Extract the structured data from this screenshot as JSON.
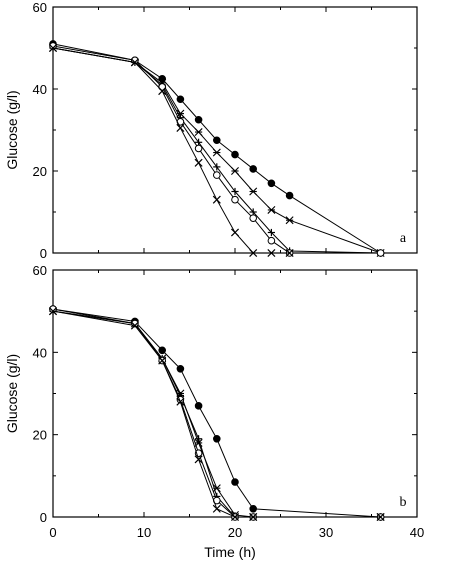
{
  "chart_data": [
    {
      "type": "line",
      "panel_label": "a",
      "xlabel": "",
      "ylabel": "Glucose (g/l)",
      "xlim": [
        0,
        40
      ],
      "ylim": [
        0,
        60
      ],
      "x_ticks": [
        0,
        10,
        20,
        30,
        40
      ],
      "y_ticks": [
        0,
        20,
        40,
        60
      ],
      "grid": false,
      "series": [
        {
          "marker": "filled-circle",
          "x": [
            0,
            9,
            12,
            14,
            16,
            18,
            20,
            22,
            24,
            26,
            36
          ],
          "y": [
            51,
            47,
            42.5,
            37.5,
            32.5,
            27.5,
            24,
            20.5,
            17,
            14,
            0
          ]
        },
        {
          "marker": "asterisk",
          "x": [
            0,
            9,
            12,
            14,
            16,
            18,
            20,
            22,
            24,
            26,
            36
          ],
          "y": [
            50,
            46.5,
            41.5,
            34,
            29.5,
            24.5,
            20,
            15,
            10.5,
            8,
            0
          ]
        },
        {
          "marker": "plus",
          "x": [
            0,
            9,
            12,
            14,
            16,
            18,
            20,
            22,
            24,
            26,
            36
          ],
          "y": [
            50,
            46.5,
            41,
            33,
            27,
            21,
            15,
            10,
            5,
            0.5,
            0
          ]
        },
        {
          "marker": "open-circle",
          "x": [
            0,
            9,
            12,
            14,
            16,
            18,
            20,
            22,
            24,
            26,
            36
          ],
          "y": [
            50.5,
            47,
            40.5,
            32,
            25.5,
            19,
            13,
            8.5,
            3,
            0,
            0
          ]
        },
        {
          "marker": "cross",
          "x": [
            0,
            9,
            12,
            14,
            16,
            18,
            20,
            22,
            24,
            26
          ],
          "y": [
            50,
            46.5,
            39.5,
            30.5,
            22,
            13,
            5,
            0,
            0,
            0
          ]
        }
      ]
    },
    {
      "type": "line",
      "panel_label": "b",
      "xlabel": "Time (h)",
      "ylabel": "Glucose (g/l)",
      "xlim": [
        0,
        40
      ],
      "ylim": [
        0,
        60
      ],
      "x_ticks": [
        0,
        10,
        20,
        30,
        40
      ],
      "y_ticks": [
        0,
        20,
        40,
        60
      ],
      "grid": false,
      "series": [
        {
          "marker": "filled-circle",
          "x": [
            0,
            9,
            12,
            14,
            16,
            18,
            20,
            22,
            36
          ],
          "y": [
            50.5,
            47.5,
            40.5,
            36,
            27,
            19,
            8.5,
            2,
            0
          ]
        },
        {
          "marker": "asterisk",
          "x": [
            0,
            9,
            12,
            14,
            16,
            18,
            20,
            22,
            36
          ],
          "y": [
            50,
            47,
            38.5,
            30,
            18,
            7,
            0.5,
            0,
            0
          ]
        },
        {
          "marker": "plus",
          "x": [
            0,
            9,
            12,
            14,
            16,
            18,
            20,
            22,
            36
          ],
          "y": [
            50,
            47,
            38.5,
            29.5,
            19,
            5,
            0,
            0,
            0
          ]
        },
        {
          "marker": "open-circle",
          "x": [
            0,
            9,
            12,
            14,
            16,
            18,
            20,
            22,
            36
          ],
          "y": [
            50.5,
            47,
            38,
            28.5,
            15.5,
            4,
            0,
            0,
            0
          ]
        },
        {
          "marker": "cross",
          "x": [
            0,
            9,
            12,
            14,
            16,
            18,
            20,
            22,
            36
          ],
          "y": [
            50,
            46.5,
            38,
            28,
            14,
            2,
            0,
            0,
            0
          ]
        }
      ]
    }
  ]
}
